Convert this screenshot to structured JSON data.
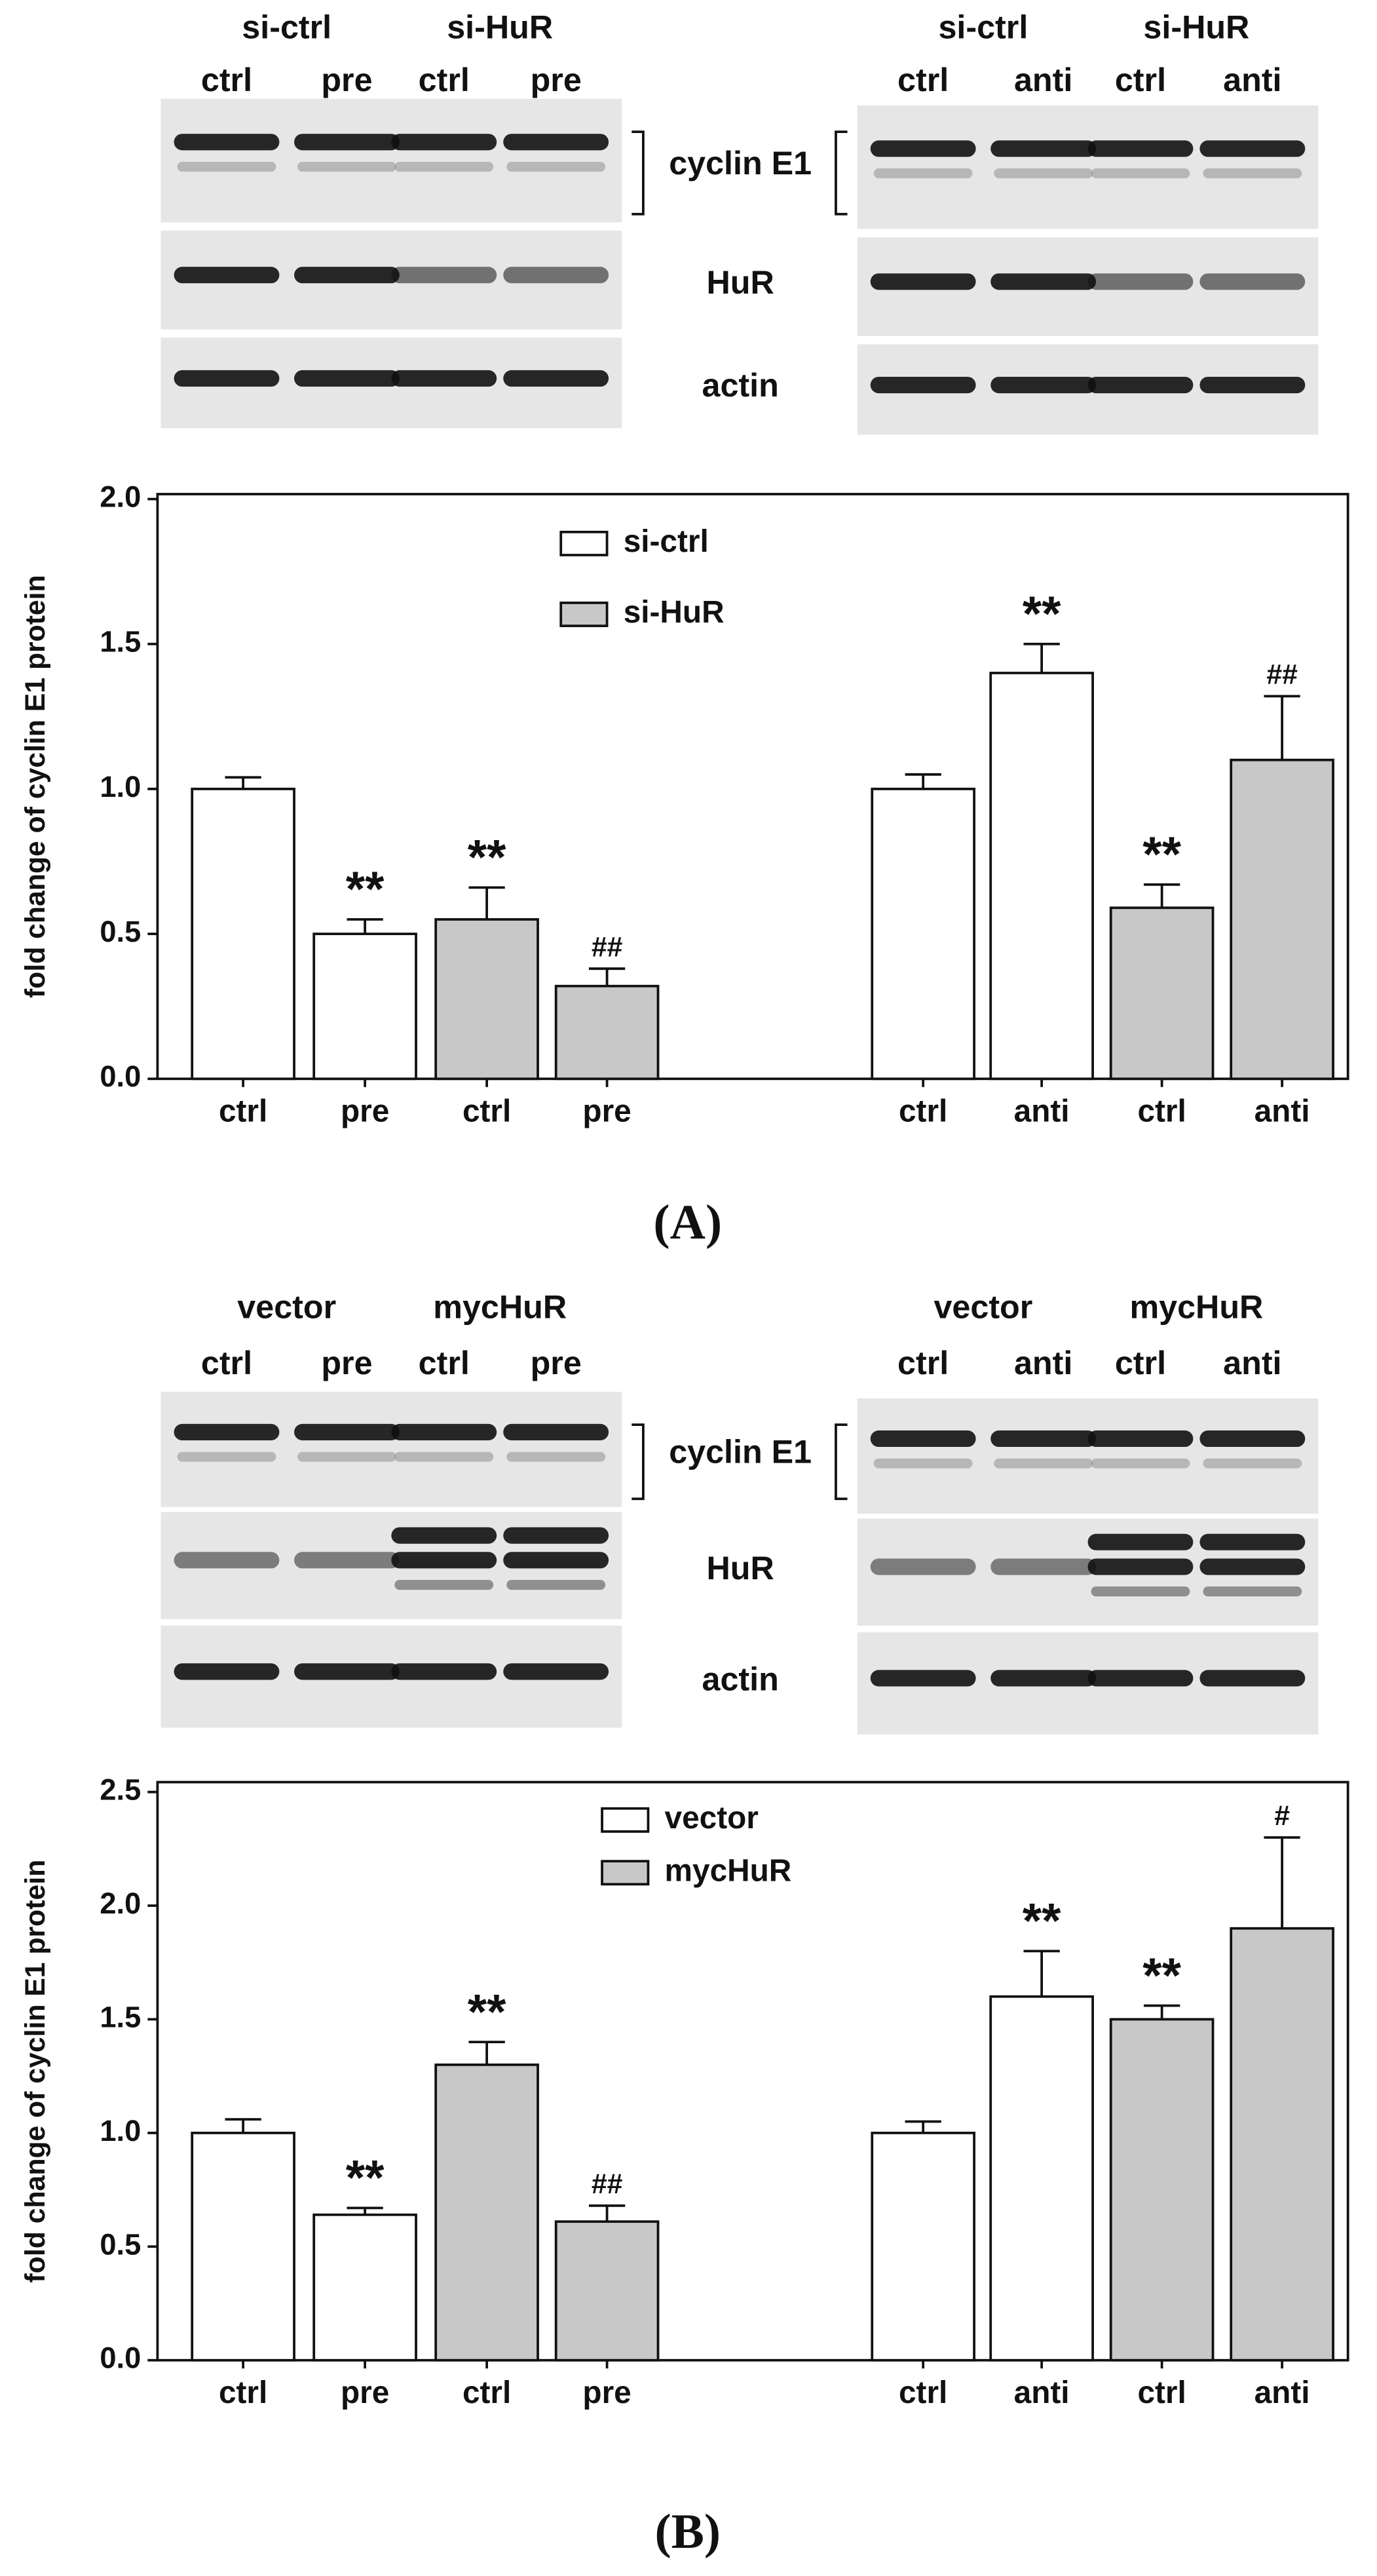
{
  "panels": [
    {
      "label": "(A)",
      "row_labels": [
        "cyclin E1",
        "HuR",
        "actin"
      ],
      "blots": [
        {
          "groups": [
            "si-ctrl",
            "si-HuR"
          ],
          "lanes": [
            "ctrl",
            "pre",
            "ctrl",
            "pre"
          ]
        },
        {
          "groups": [
            "si-ctrl",
            "si-HuR"
          ],
          "lanes": [
            "ctrl",
            "anti",
            "ctrl",
            "anti"
          ]
        }
      ]
    },
    {
      "label": "(B)",
      "row_labels": [
        "cyclin E1",
        "HuR",
        "actin"
      ],
      "blots": [
        {
          "groups": [
            "vector",
            "mycHuR"
          ],
          "lanes": [
            "ctrl",
            "pre",
            "ctrl",
            "pre"
          ]
        },
        {
          "groups": [
            "vector",
            "mycHuR"
          ],
          "lanes": [
            "ctrl",
            "anti",
            "ctrl",
            "anti"
          ]
        }
      ]
    }
  ],
  "chart_data": [
    {
      "type": "bar",
      "y_label": "fold change of cyclin E1 protein",
      "categories": [
        "ctrl",
        "pre",
        "ctrl",
        "pre",
        "ctrl",
        "anti",
        "ctrl",
        "anti"
      ],
      "series": [
        {
          "name": "si-ctrl",
          "color": "#ffffff",
          "values": [
            1.0,
            0.5,
            null,
            null,
            1.0,
            1.4,
            null,
            null
          ],
          "errors": [
            0.04,
            0.05,
            null,
            null,
            0.05,
            0.1,
            null,
            null
          ],
          "annotations": [
            null,
            "**",
            null,
            null,
            null,
            "**",
            null,
            null
          ]
        },
        {
          "name": "si-HuR",
          "color": "#c8c8c8",
          "values": [
            null,
            null,
            0.55,
            0.32,
            null,
            null,
            0.59,
            1.1
          ],
          "errors": [
            null,
            null,
            0.11,
            0.06,
            null,
            null,
            0.08,
            0.22
          ],
          "annotations": [
            null,
            null,
            "**",
            "##",
            null,
            null,
            "**",
            "##"
          ]
        }
      ],
      "ylim": [
        0,
        2.0
      ],
      "yticks": [
        {
          "value": 0,
          "label": "0.0"
        },
        {
          "value": 0.5,
          "label": "0.5"
        },
        {
          "value": 1.0,
          "label": "1.0"
        },
        {
          "value": 1.5,
          "label": "1.5"
        },
        {
          "value": 2.0,
          "label": "2.0"
        }
      ]
    },
    {
      "type": "bar",
      "y_label": "fold change of cyclin E1 protein",
      "categories": [
        "ctrl",
        "pre",
        "ctrl",
        "pre",
        "ctrl",
        "anti",
        "ctrl",
        "anti"
      ],
      "series": [
        {
          "name": "vector",
          "color": "#ffffff",
          "values": [
            1.0,
            0.64,
            null,
            null,
            1.0,
            1.6,
            null,
            null
          ],
          "errors": [
            0.06,
            0.03,
            null,
            null,
            0.05,
            0.2,
            null,
            null
          ],
          "annotations": [
            null,
            "**",
            null,
            null,
            null,
            "**",
            null,
            null
          ]
        },
        {
          "name": "mycHuR",
          "color": "#c8c8c8",
          "values": [
            null,
            null,
            1.3,
            0.61,
            null,
            null,
            1.5,
            1.9
          ],
          "errors": [
            null,
            null,
            0.1,
            0.07,
            null,
            null,
            0.06,
            0.4
          ],
          "annotations": [
            null,
            null,
            "**",
            "##",
            null,
            null,
            "**",
            "#"
          ]
        }
      ],
      "ylim": [
        0,
        2.5
      ],
      "yticks": [
        {
          "value": 0,
          "label": "0.0"
        },
        {
          "value": 0.5,
          "label": "0.5"
        },
        {
          "value": 1.0,
          "label": "1.0"
        },
        {
          "value": 1.5,
          "label": "1.5"
        },
        {
          "value": 2.0,
          "label": "2.0"
        },
        {
          "value": 2.5,
          "label": "2.5"
        }
      ]
    }
  ]
}
